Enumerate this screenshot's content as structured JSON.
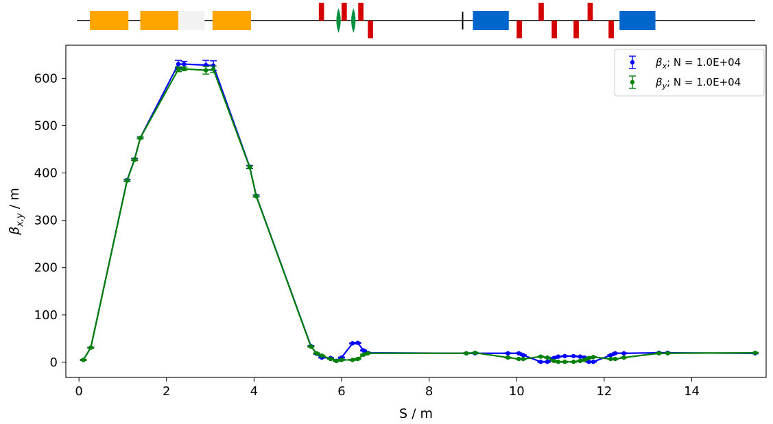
{
  "chart_data": {
    "type": "line",
    "xlabel": "S / m",
    "ylabel": "β",
    "ylabel_sub": "x,y",
    "ylabel_unit": " / m",
    "xlim": [
      -0.3,
      15.7
    ],
    "ylim": [
      -32,
      670
    ],
    "xticks": [
      0,
      2,
      4,
      6,
      8,
      10,
      12,
      14
    ],
    "yticks": [
      0,
      100,
      200,
      300,
      400,
      500,
      600
    ],
    "grid": false,
    "legend_position": "top-right",
    "series": [
      {
        "name": "β",
        "name_sub": "x",
        "name_suffix": "; N = 1.0E+04",
        "color": "#0000ff",
        "x": [
          0.1,
          0.27,
          1.1,
          1.27,
          1.4,
          2.27,
          2.4,
          2.9,
          3.07,
          3.9,
          4.05,
          5.3,
          5.43,
          5.55,
          5.75,
          5.88,
          6.0,
          6.25,
          6.37,
          6.5,
          6.6,
          8.85,
          9.05,
          9.8,
          10.05,
          10.15,
          10.55,
          10.7,
          10.85,
          10.95,
          11.1,
          11.3,
          11.45,
          11.55,
          11.65,
          11.75,
          12.15,
          12.25,
          12.45,
          13.25,
          13.45,
          15.45
        ],
        "y": [
          5,
          31,
          385,
          429,
          474,
          630,
          630,
          628,
          627,
          413,
          352,
          34,
          18,
          10,
          9,
          3,
          10,
          40,
          41,
          25,
          20,
          19,
          19,
          19,
          19,
          15,
          1,
          1,
          9,
          12,
          13,
          13,
          12,
          10,
          1,
          1,
          15,
          19,
          19,
          20,
          20,
          19
        ],
        "errors": [
          1,
          1,
          2,
          2,
          2,
          8,
          6,
          10,
          10,
          3,
          2,
          1,
          1,
          1,
          1,
          1,
          1,
          1,
          1,
          1,
          1,
          1,
          1,
          1,
          1,
          1,
          1,
          1,
          1,
          1,
          1,
          1,
          1,
          1,
          1,
          1,
          1,
          1,
          1,
          1,
          1,
          1
        ]
      },
      {
        "name": "β",
        "name_sub": "y",
        "name_suffix": "; N = 1.0E+04",
        "color": "#008000",
        "x": [
          0.1,
          0.27,
          1.1,
          1.27,
          1.4,
          2.27,
          2.4,
          2.9,
          3.07,
          3.9,
          4.05,
          5.3,
          5.43,
          5.55,
          5.75,
          5.88,
          6.0,
          6.25,
          6.37,
          6.5,
          6.6,
          8.85,
          9.05,
          9.8,
          10.05,
          10.15,
          10.55,
          10.7,
          10.85,
          10.95,
          11.1,
          11.3,
          11.45,
          11.55,
          11.65,
          11.75,
          12.15,
          12.25,
          12.45,
          13.25,
          13.45,
          15.45
        ],
        "y": [
          5,
          31,
          384,
          428,
          474,
          619,
          620,
          617,
          619,
          412,
          351,
          33,
          19,
          14,
          7,
          3,
          5,
          5,
          7,
          16,
          19,
          19,
          20,
          10,
          7,
          7,
          12,
          10,
          3,
          1,
          1,
          1,
          3,
          5,
          9,
          11,
          7,
          7,
          10,
          19,
          19,
          20
        ],
        "errors": [
          1,
          1,
          2,
          2,
          2,
          5,
          4,
          8,
          7,
          3,
          2,
          1,
          1,
          1,
          1,
          1,
          1,
          1,
          1,
          1,
          1,
          1,
          1,
          1,
          1,
          1,
          1,
          1,
          1,
          1,
          1,
          1,
          1,
          1,
          1,
          1,
          1,
          1,
          1,
          1,
          1,
          1
        ]
      }
    ]
  },
  "lattice": {
    "line_range": [
      -0.05,
      15.45
    ],
    "elements": [
      {
        "kind": "dipole",
        "s": 0.25,
        "len": 0.88,
        "color": "#ffa500"
      },
      {
        "kind": "dipole",
        "s": 1.4,
        "len": 0.87,
        "color": "#ffa500"
      },
      {
        "kind": "dipole-faint",
        "s": 2.27,
        "len": 0.6,
        "color": "#f2f2f2"
      },
      {
        "kind": "dipole",
        "s": 3.05,
        "len": 0.88,
        "color": "#ffa500"
      },
      {
        "kind": "quad-focus",
        "s": 5.48,
        "len": 0.12,
        "color": "#d40000"
      },
      {
        "kind": "sextupole",
        "s": 5.88,
        "len": 0.1,
        "color": "#009040"
      },
      {
        "kind": "quad-focus",
        "s": 6.0,
        "len": 0.12,
        "color": "#d40000"
      },
      {
        "kind": "sextupole",
        "s": 6.22,
        "len": 0.1,
        "color": "#009040"
      },
      {
        "kind": "quad-focus",
        "s": 6.38,
        "len": 0.12,
        "color": "#d40000"
      },
      {
        "kind": "quad-defocus",
        "s": 6.6,
        "len": 0.12,
        "color": "#d40000"
      },
      {
        "kind": "marker",
        "s": 8.75,
        "len": 0.03,
        "color": "#000000"
      },
      {
        "kind": "solenoid",
        "s": 9.0,
        "len": 0.82,
        "color": "#0066cc"
      },
      {
        "kind": "quad-defocus",
        "s": 10.0,
        "len": 0.12,
        "color": "#d40000"
      },
      {
        "kind": "quad-focus",
        "s": 10.5,
        "len": 0.12,
        "color": "#d40000"
      },
      {
        "kind": "quad-defocus",
        "s": 10.8,
        "len": 0.12,
        "color": "#d40000"
      },
      {
        "kind": "quad-defocus",
        "s": 11.3,
        "len": 0.12,
        "color": "#d40000"
      },
      {
        "kind": "quad-focus",
        "s": 11.62,
        "len": 0.12,
        "color": "#d40000"
      },
      {
        "kind": "quad-defocus",
        "s": 12.1,
        "len": 0.12,
        "color": "#d40000"
      },
      {
        "kind": "solenoid",
        "s": 12.35,
        "len": 0.82,
        "color": "#0066cc"
      }
    ]
  }
}
